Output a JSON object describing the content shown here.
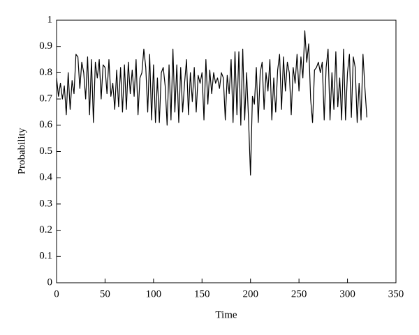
{
  "chart_data": {
    "type": "line",
    "xlabel": "Time",
    "ylabel": "Probability",
    "x": [
      0,
      2,
      4,
      6,
      8,
      10,
      12,
      14,
      16,
      18,
      20,
      22,
      24,
      26,
      28,
      30,
      32,
      34,
      36,
      38,
      40,
      42,
      44,
      46,
      48,
      50,
      52,
      54,
      56,
      58,
      60,
      62,
      64,
      66,
      68,
      70,
      72,
      74,
      76,
      78,
      80,
      82,
      84,
      86,
      88,
      90,
      92,
      94,
      96,
      98,
      100,
      102,
      104,
      106,
      108,
      110,
      112,
      114,
      116,
      118,
      120,
      122,
      124,
      126,
      128,
      130,
      132,
      134,
      136,
      138,
      140,
      142,
      144,
      146,
      148,
      150,
      152,
      154,
      156,
      158,
      160,
      162,
      164,
      166,
      168,
      170,
      172,
      174,
      176,
      178,
      180,
      182,
      184,
      186,
      188,
      190,
      192,
      194,
      196,
      198,
      200,
      202,
      204,
      206,
      208,
      210,
      212,
      214,
      216,
      218,
      220,
      222,
      224,
      226,
      228,
      230,
      232,
      234,
      236,
      238,
      240,
      242,
      244,
      246,
      248,
      250,
      252,
      254,
      256,
      258,
      260,
      262,
      264,
      266,
      268,
      270,
      272,
      274,
      276,
      278,
      280,
      282,
      284,
      286,
      288,
      290,
      292,
      294,
      296,
      298,
      300,
      302,
      304,
      306,
      308,
      310,
      312,
      314,
      316,
      318,
      320
    ],
    "series": [
      {
        "name": "Probability",
        "color": "#000000",
        "values": [
          0.78,
          0.71,
          0.76,
          0.7,
          0.75,
          0.64,
          0.8,
          0.66,
          0.77,
          0.72,
          0.87,
          0.86,
          0.74,
          0.84,
          0.8,
          0.7,
          0.86,
          0.64,
          0.85,
          0.61,
          0.84,
          0.78,
          0.85,
          0.7,
          0.83,
          0.82,
          0.72,
          0.85,
          0.71,
          0.76,
          0.66,
          0.81,
          0.67,
          0.82,
          0.65,
          0.83,
          0.66,
          0.84,
          0.72,
          0.81,
          0.71,
          0.85,
          0.64,
          0.78,
          0.8,
          0.89,
          0.82,
          0.65,
          0.87,
          0.62,
          0.83,
          0.61,
          0.78,
          0.61,
          0.8,
          0.82,
          0.75,
          0.6,
          0.83,
          0.62,
          0.89,
          0.65,
          0.83,
          0.61,
          0.82,
          0.65,
          0.76,
          0.85,
          0.64,
          0.8,
          0.69,
          0.82,
          0.65,
          0.79,
          0.76,
          0.8,
          0.62,
          0.85,
          0.68,
          0.81,
          0.72,
          0.8,
          0.76,
          0.78,
          0.74,
          0.8,
          0.78,
          0.62,
          0.79,
          0.72,
          0.85,
          0.61,
          0.88,
          0.64,
          0.88,
          0.6,
          0.89,
          0.62,
          0.8,
          0.62,
          0.41,
          0.71,
          0.68,
          0.82,
          0.61,
          0.8,
          0.84,
          0.66,
          0.8,
          0.73,
          0.85,
          0.62,
          0.78,
          0.65,
          0.81,
          0.87,
          0.66,
          0.86,
          0.73,
          0.84,
          0.8,
          0.64,
          0.82,
          0.76,
          0.87,
          0.73,
          0.86,
          0.78,
          0.96,
          0.84,
          0.91,
          0.7,
          0.61,
          0.81,
          0.82,
          0.84,
          0.8,
          0.84,
          0.62,
          0.82,
          0.89,
          0.62,
          0.8,
          0.66,
          0.88,
          0.67,
          0.78,
          0.62,
          0.89,
          0.62,
          0.8,
          0.87,
          0.63,
          0.86,
          0.82,
          0.61,
          0.76,
          0.62,
          0.87,
          0.74,
          0.63
        ]
      }
    ],
    "xlim": [
      0,
      350
    ],
    "xticks": [
      0,
      50,
      100,
      150,
      200,
      250,
      300,
      350
    ],
    "ylim": [
      0,
      1
    ],
    "yticks": [
      0,
      0.1,
      0.2,
      0.3,
      0.4,
      0.5,
      0.6,
      0.7,
      0.8,
      0.9,
      1
    ]
  }
}
